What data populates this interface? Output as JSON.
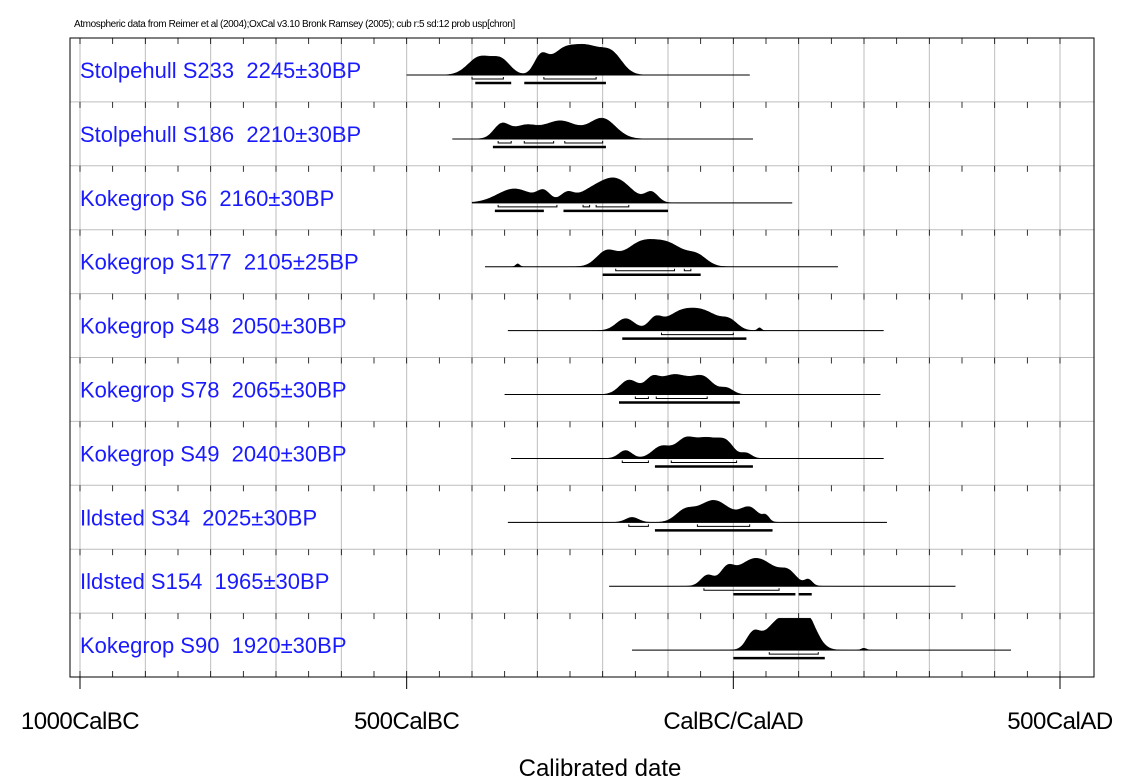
{
  "chart_data": {
    "type": "multiple-plot",
    "header": "Atmospheric data from Reimer et al (2004);OxCal v3.10 Bronk Ramsey (2005); cub r:5 sd:12 prob usp[chron]",
    "xlabel": "Calibrated date",
    "xlim": [
      -1000,
      500
    ],
    "x_ticks": [
      {
        "value": -1000,
        "label": "1000CalBC"
      },
      {
        "value": -500,
        "label": "500CalBC"
      },
      {
        "value": 0,
        "label": "CalBC/CalAD"
      },
      {
        "value": 500,
        "label": "500CalAD"
      }
    ],
    "grid": true,
    "series": [
      {
        "name": "Stolpehull S233  2245±30BP",
        "range": [
          -500,
          25
        ],
        "peaks": [
          [
            -388,
            18,
            18
          ],
          [
            -355,
            14,
            14
          ],
          [
            -295,
            16,
            10
          ],
          [
            -262,
            22,
            20
          ],
          [
            -222,
            26,
            22
          ],
          [
            -185,
            18,
            16
          ]
        ],
        "hpd68": [
          [
            -400,
            -352
          ],
          [
            -290,
            -210
          ]
        ],
        "hpd95": [
          [
            -395,
            -340
          ],
          [
            -320,
            -195
          ]
        ]
      },
      {
        "name": "Stolpehull S186  2210±30BP",
        "range": [
          -430,
          30
        ],
        "peaks": [
          [
            -355,
            14,
            12
          ],
          [
            -320,
            12,
            18
          ],
          [
            -265,
            18,
            26
          ],
          [
            -200,
            20,
            20
          ]
        ],
        "hpd68": [
          [
            -360,
            -340
          ],
          [
            -320,
            -275
          ],
          [
            -258,
            -200
          ]
        ],
        "hpd95": [
          [
            -368,
            -195
          ]
        ]
      },
      {
        "name": "Kokegrop S6  2160±30BP",
        "range": [
          -400,
          90
        ],
        "peaks": [
          [
            -335,
            14,
            26
          ],
          [
            -290,
            10,
            10
          ],
          [
            -255,
            8,
            10
          ],
          [
            -210,
            14,
            26
          ],
          [
            -175,
            18,
            22
          ],
          [
            -125,
            10,
            10
          ]
        ],
        "hpd68": [
          [
            -360,
            -270
          ],
          [
            -230,
            -220
          ],
          [
            -210,
            -160
          ]
        ],
        "hpd95": [
          [
            -365,
            -290
          ],
          [
            -260,
            -100
          ]
        ]
      },
      {
        "name": "Kokegrop S177  2105±25BP",
        "range": [
          -380,
          160
        ],
        "peaks": [
          [
            -330,
            3,
            3
          ],
          [
            -195,
            14,
            15
          ],
          [
            -140,
            24,
            26
          ],
          [
            -95,
            18,
            22
          ],
          [
            -55,
            10,
            15
          ]
        ],
        "hpd68": [
          [
            -180,
            -90
          ],
          [
            -75,
            -65
          ]
        ],
        "hpd95": [
          [
            -200,
            -50
          ]
        ]
      },
      {
        "name": "Kokegrop S48  2050±30BP",
        "range": [
          -345,
          230
        ],
        "peaks": [
          [
            -165,
            12,
            14
          ],
          [
            -120,
            10,
            10
          ],
          [
            -80,
            18,
            24
          ],
          [
            -40,
            15,
            22
          ],
          [
            -5,
            8,
            12
          ],
          [
            40,
            3,
            3
          ]
        ],
        "hpd68": [
          [
            -110,
            0
          ]
        ],
        "hpd95": [
          [
            -170,
            20
          ]
        ]
      },
      {
        "name": "Kokegrop S78  2065±30BP",
        "range": [
          -350,
          225
        ],
        "peaks": [
          [
            -160,
            14,
            14
          ],
          [
            -125,
            10,
            10
          ],
          [
            -90,
            20,
            26
          ],
          [
            -45,
            14,
            15
          ],
          [
            -10,
            6,
            10
          ]
        ],
        "hpd68": [
          [
            -150,
            -130
          ],
          [
            -118,
            -40
          ]
        ],
        "hpd95": [
          [
            -175,
            10
          ]
        ]
      },
      {
        "name": "Kokegrop S49  2040±30BP",
        "range": [
          -340,
          230
        ],
        "peaks": [
          [
            -165,
            8,
            10
          ],
          [
            -110,
            12,
            14
          ],
          [
            -75,
            16,
            14
          ],
          [
            -40,
            20,
            20
          ],
          [
            -10,
            12,
            12
          ],
          [
            20,
            5,
            8
          ]
        ],
        "hpd68": [
          [
            -170,
            -130
          ],
          [
            -95,
            5
          ]
        ],
        "hpd95": [
          [
            -120,
            30
          ]
        ]
      },
      {
        "name": "Ildsted S34  2025±30BP",
        "range": [
          -345,
          235
        ],
        "peaks": [
          [
            -155,
            5,
            10
          ],
          [
            -75,
            10,
            14
          ],
          [
            -30,
            22,
            24
          ],
          [
            25,
            14,
            14
          ],
          [
            50,
            5,
            5
          ]
        ],
        "hpd68": [
          [
            -160,
            -130
          ],
          [
            -55,
            25
          ]
        ],
        "hpd95": [
          [
            -120,
            60
          ]
        ]
      },
      {
        "name": "Ildsted S154  1965±30BP",
        "range": [
          -190,
          340
        ],
        "peaks": [
          [
            -40,
            10,
            10
          ],
          [
            -10,
            12,
            10
          ],
          [
            35,
            28,
            30
          ],
          [
            85,
            10,
            12
          ],
          [
            115,
            6,
            6
          ]
        ],
        "hpd68": [
          [
            -45,
            70
          ]
        ],
        "hpd95": [
          [
            0,
            95
          ],
          [
            100,
            120
          ]
        ]
      },
      {
        "name": "Kokegrop S90  1920±30BP",
        "range": [
          -155,
          425
        ],
        "peaks": [
          [
            30,
            14,
            10
          ],
          [
            75,
            32,
            24
          ],
          [
            110,
            30,
            16
          ],
          [
            200,
            2,
            4
          ]
        ],
        "hpd68": [
          [
            55,
            130
          ]
        ],
        "hpd95": [
          [
            0,
            140
          ]
        ]
      }
    ]
  }
}
